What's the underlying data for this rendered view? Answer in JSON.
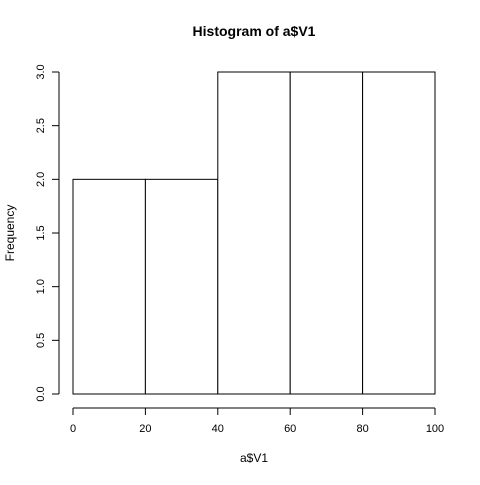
{
  "chart_data": {
    "type": "bar",
    "title": "Histogram of a$V1",
    "xlabel": "a$V1",
    "ylabel": "Frequency",
    "bins": [
      [
        0,
        20
      ],
      [
        20,
        40
      ],
      [
        40,
        60
      ],
      [
        60,
        80
      ],
      [
        80,
        100
      ]
    ],
    "values": [
      2,
      2,
      3,
      3,
      3
    ],
    "xlim": [
      0,
      100
    ],
    "ylim": [
      0,
      3
    ],
    "xticks": [
      "0",
      "20",
      "40",
      "60",
      "80",
      "100"
    ],
    "yticks": [
      "0.0",
      "0.5",
      "1.0",
      "1.5",
      "2.0",
      "2.5",
      "3.0"
    ],
    "grid": false,
    "bar_fill": "#ffffff",
    "bar_stroke": "#000000"
  }
}
